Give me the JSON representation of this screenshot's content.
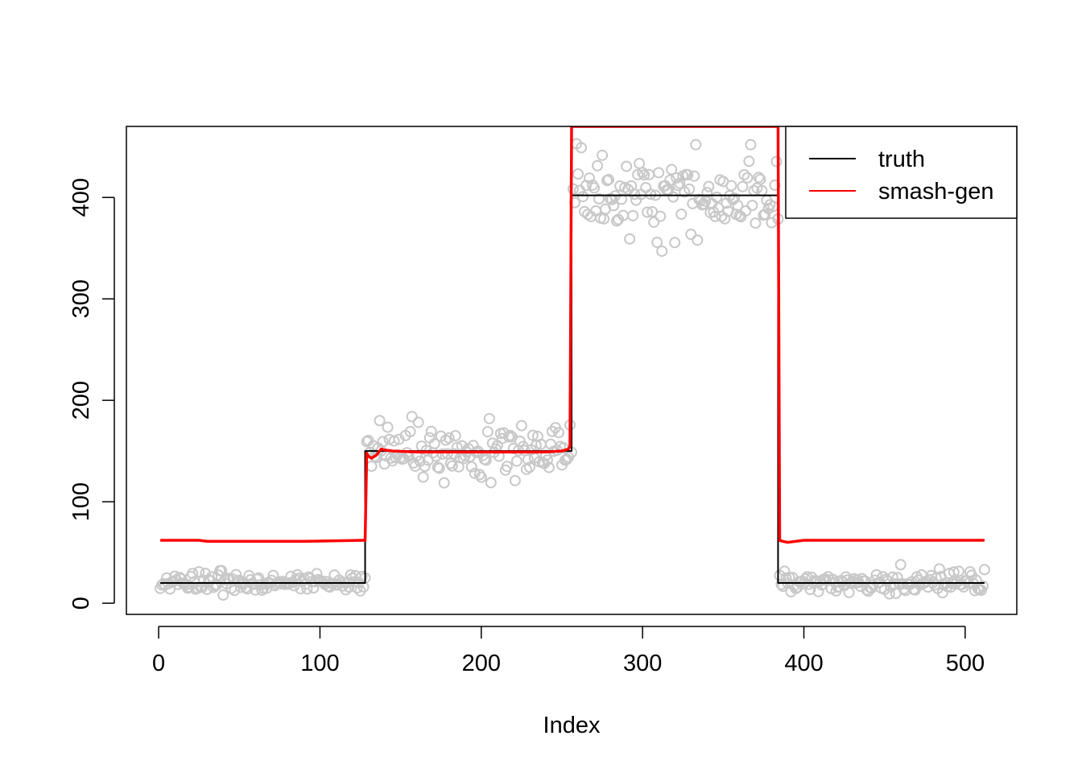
{
  "chart_data": {
    "type": "scatter",
    "title": "",
    "xlabel": "Index",
    "ylabel": "",
    "xlim": [
      -20,
      532
    ],
    "ylim": [
      -11,
      470
    ],
    "x_ticks": [
      0,
      100,
      200,
      300,
      400,
      500
    ],
    "y_ticks": [
      0,
      100,
      200,
      300,
      400
    ],
    "x_tick_labels": [
      "0",
      "100",
      "200",
      "300",
      "400",
      "500"
    ],
    "y_tick_labels": [
      "0",
      "100",
      "200",
      "300",
      "400"
    ],
    "grid": false,
    "legend": {
      "placement": "top-right",
      "entries": [
        {
          "label": "truth",
          "color": "#000000"
        },
        {
          "label": "smash-gen",
          "color": "#ff0000"
        }
      ]
    },
    "points": {
      "n": 512,
      "color": "#c8c8c8",
      "segments": [
        {
          "x_range": [
            1,
            128
          ],
          "mean": 20,
          "sd": 5
        },
        {
          "x_range": [
            129,
            256
          ],
          "mean": 150,
          "sd": 12
        },
        {
          "x_range": [
            257,
            384
          ],
          "mean": 400,
          "sd": 18
        },
        {
          "x_range": [
            385,
            512
          ],
          "mean": 20,
          "sd": 5
        }
      ],
      "outliers": [
        {
          "x": 312,
          "y": 347
        },
        {
          "x": 262,
          "y": 449
        },
        {
          "x": 367,
          "y": 452
        },
        {
          "x": 333,
          "y": 452
        },
        {
          "x": 157,
          "y": 184
        },
        {
          "x": 137,
          "y": 180
        },
        {
          "x": 205,
          "y": 182
        },
        {
          "x": 25,
          "y": 31
        },
        {
          "x": 460,
          "y": 38
        },
        {
          "x": 40,
          "y": 8
        }
      ]
    },
    "series": [
      {
        "name": "truth",
        "color": "#000000",
        "x": [
          1,
          128,
          128,
          256,
          256,
          384,
          384,
          512
        ],
        "y": [
          20,
          20,
          150,
          150,
          402,
          402,
          20,
          20
        ]
      },
      {
        "name": "smash-gen",
        "color": "#ff0000",
        "x": [
          1,
          25,
          30,
          90,
          127,
          128,
          129,
          130,
          132,
          135,
          138,
          140,
          145,
          160,
          200,
          240,
          250,
          254,
          255,
          256,
          257,
          383,
          384,
          385,
          387,
          390,
          395,
          400,
          450,
          512
        ],
        "y": [
          62,
          62,
          61,
          61,
          62,
          62,
          148,
          145,
          143,
          146,
          152,
          151,
          150,
          149,
          149,
          149,
          150,
          152,
          155,
          470,
          470,
          470,
          470,
          62,
          61,
          60,
          61,
          62,
          62,
          62
        ]
      }
    ]
  }
}
